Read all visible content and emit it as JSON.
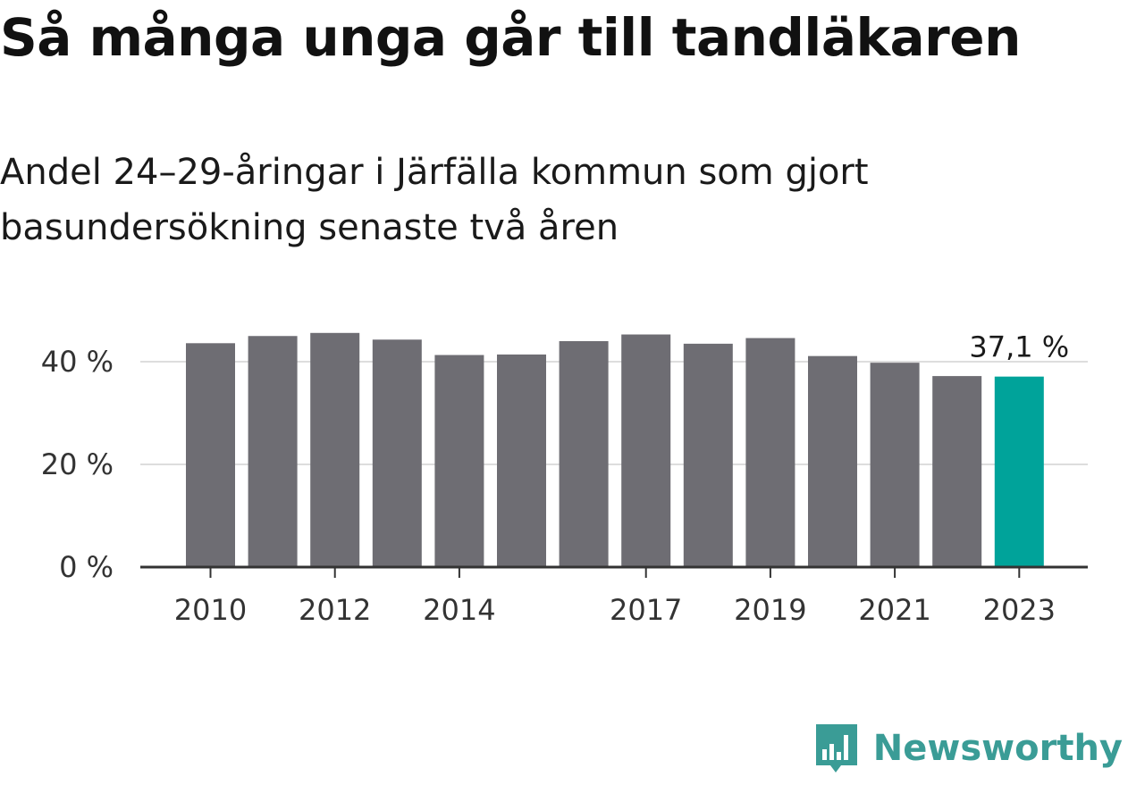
{
  "title": "Så många unga går till tandläkaren",
  "subtitle": "Andel 24–29-åringar i Järfälla kommun som gjort basundersökning senaste två åren",
  "brand": {
    "name": "Newsworthy",
    "color": "#3a9c96"
  },
  "colors": {
    "bar": "#6e6d73",
    "highlight": "#00a39a",
    "grid": "#dddddd",
    "axis": "#333333"
  },
  "chart_data": {
    "type": "bar",
    "x": [
      2010,
      2011,
      2012,
      2013,
      2014,
      2015,
      2016,
      2017,
      2018,
      2019,
      2020,
      2021,
      2022,
      2023
    ],
    "values": [
      43.6,
      45.0,
      45.6,
      44.3,
      41.3,
      41.4,
      44.0,
      45.3,
      43.5,
      44.6,
      41.1,
      39.8,
      37.2,
      37.1
    ],
    "x_tick_labels": [
      "2010",
      "2012",
      "2014",
      "2017",
      "2019",
      "2021",
      "2023"
    ],
    "y_ticks": [
      0,
      20,
      40
    ],
    "y_tick_labels": [
      "0 %",
      "20 %",
      "40 %"
    ],
    "ylim": [
      0,
      40
    ],
    "highlight_index": 13,
    "highlight_label": "37,1 %",
    "grid": true,
    "legend": "none"
  }
}
